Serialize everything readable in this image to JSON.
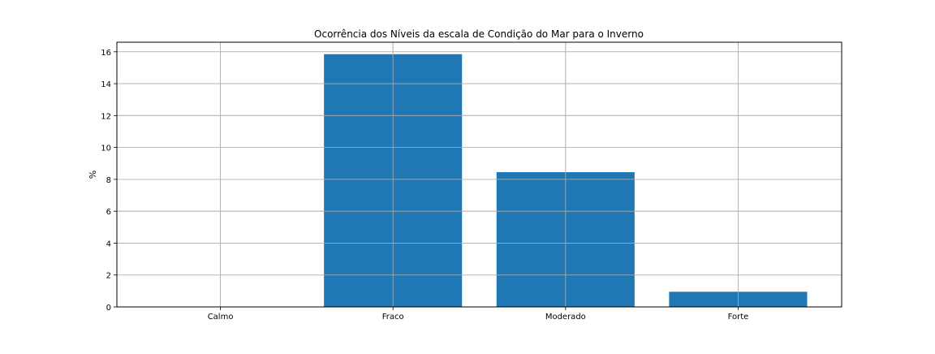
{
  "chart_data": {
    "type": "bar",
    "title": "Ocorrência dos Níveis da escala de Condição do Mar para o Inverno",
    "xlabel": "",
    "ylabel": "%",
    "categories": [
      "Calmo",
      "Fraco",
      "Moderado",
      "Forte"
    ],
    "values": [
      0.0,
      15.85,
      8.45,
      0.95
    ],
    "ylim": [
      0,
      16.6
    ],
    "yticks": [
      0,
      2,
      4,
      6,
      8,
      10,
      12,
      14,
      16
    ],
    "grid": true,
    "bar_color": "#1f77b4",
    "grid_color": "#b0b0b0"
  }
}
